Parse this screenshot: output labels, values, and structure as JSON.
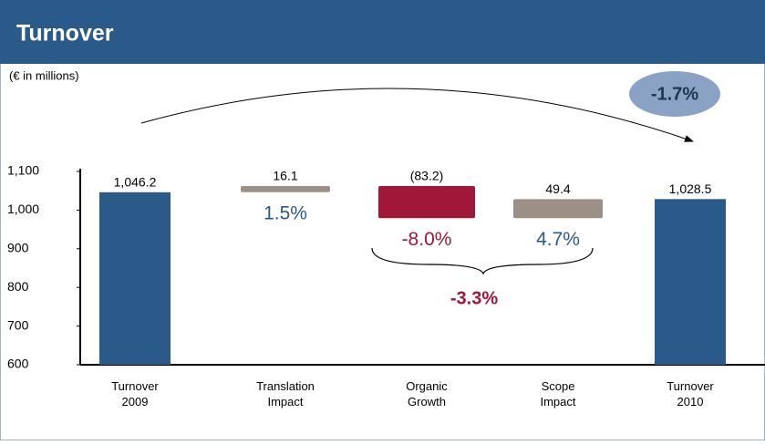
{
  "chart_data": {
    "type": "waterfall",
    "title": "Turnover",
    "subtitle": "(€ in millions)",
    "categories": [
      [
        "Turnover",
        "2009"
      ],
      [
        "Translation",
        "Impact"
      ],
      [
        "Organic",
        "Growth"
      ],
      [
        "Scope",
        "Impact"
      ],
      [
        "Turnover",
        "2010"
      ]
    ],
    "measure": [
      "total",
      "relative",
      "relative",
      "relative",
      "total"
    ],
    "values": [
      1046.2,
      16.1,
      -83.2,
      49.4,
      1028.5
    ],
    "value_labels": [
      "1,046.2",
      "16.1",
      "(83.2)",
      "49.4",
      "1,028.5"
    ],
    "colors": [
      "#2a5a8a",
      "#9b8f86",
      "#a0173a",
      "#9b8f86",
      "#2a5a8a"
    ],
    "pct_labels": [
      null,
      "1.5%",
      "-8.0%",
      "4.7%",
      null
    ],
    "pct_colors": [
      null,
      "#2a5a8a",
      "#a0173a",
      "#2a5a8a",
      null
    ],
    "organic_total": "-3.3%",
    "overall_change": "-1.7%",
    "ylim": [
      600,
      1100
    ],
    "yticks": [
      600,
      700,
      800,
      900,
      {
        "value": 1000,
        "label": "1,000"
      },
      {
        "value": 1100,
        "label": "1,100"
      }
    ]
  }
}
